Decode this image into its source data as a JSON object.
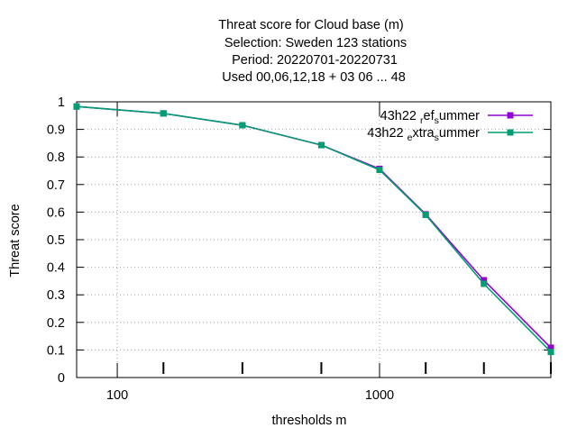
{
  "chart_data": {
    "type": "line",
    "title_lines": [
      "Threat score  for Cloud base (m)",
      "Selection: Sweden    123 stations",
      "Period: 20220701-20220731",
      "Used  00,06,12,18  + 03 06 ... 48"
    ],
    "xlabel": "thresholds m",
    "ylabel": "Threat score",
    "x_scale": "log",
    "xlim": [
      70,
      4500
    ],
    "ylim": [
      0,
      1
    ],
    "x_ticks": [
      100,
      1000
    ],
    "x_minor_ticks": [
      150,
      300,
      600,
      1500,
      2500,
      4500
    ],
    "y_ticks": [
      0,
      0.1,
      0.2,
      0.3,
      0.4,
      0.5,
      0.6,
      0.7,
      0.8,
      0.9,
      1
    ],
    "grid": true,
    "legend_position": "top-right",
    "series": [
      {
        "name_parts": [
          "43h22 ",
          "r",
          "ef",
          "s",
          "ummer"
        ],
        "color": "#9400d3",
        "x": [
          70,
          150,
          300,
          600,
          1000,
          1500,
          2500,
          4500
        ],
        "y": [
          0.983,
          0.958,
          0.915,
          0.843,
          0.757,
          0.592,
          0.353,
          0.108
        ]
      },
      {
        "name_parts": [
          "43h22 ",
          "e",
          "xtra",
          "s",
          "ummer"
        ],
        "color": "#009e73",
        "x": [
          70,
          150,
          300,
          600,
          1000,
          1500,
          2500,
          4500
        ],
        "y": [
          0.983,
          0.958,
          0.915,
          0.843,
          0.753,
          0.59,
          0.34,
          0.093
        ]
      }
    ]
  }
}
